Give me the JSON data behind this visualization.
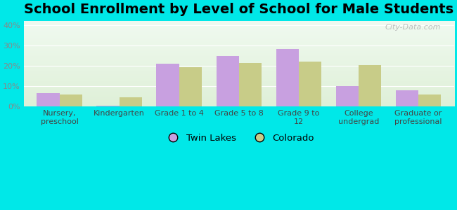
{
  "title": "School Enrollment by Level of School for Male Students",
  "categories": [
    "Nursery,\npreschool",
    "Kindergarten",
    "Grade 1 to 4",
    "Grade 5 to 8",
    "Grade 9 to\n12",
    "College\nundergrad",
    "Graduate or\nprofessional"
  ],
  "twin_lakes": [
    6.5,
    0.5,
    21.0,
    25.0,
    28.5,
    10.0,
    8.0
  ],
  "colorado": [
    6.0,
    4.5,
    19.5,
    21.5,
    22.0,
    20.5,
    6.0
  ],
  "twin_lakes_color": "#c8a0e0",
  "colorado_color": "#c8cc88",
  "background_color": "#00e8e8",
  "grad_color_top": "#dff0d8",
  "grad_color_bottom": "#f0faf0",
  "ytick_color": "#888888",
  "xtick_color": "#444444",
  "ylim": [
    0,
    42
  ],
  "yticks": [
    0,
    10,
    20,
    30,
    40
  ],
  "bar_width": 0.38,
  "title_fontsize": 14,
  "tick_fontsize": 8,
  "legend_labels": [
    "Twin Lakes",
    "Colorado"
  ],
  "watermark": "City-Data.com"
}
